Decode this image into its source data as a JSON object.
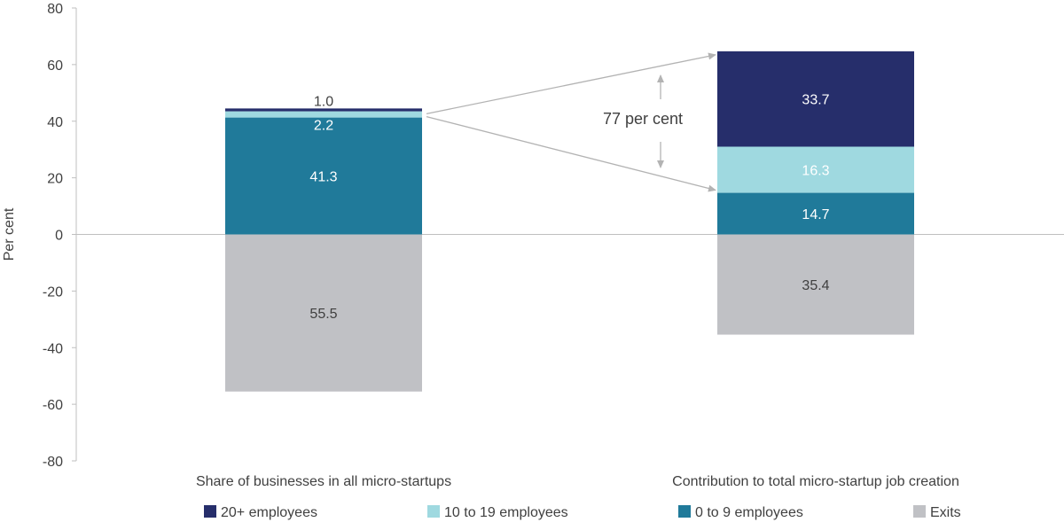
{
  "chart_data": {
    "type": "bar",
    "stacked": true,
    "title": "",
    "ylabel": "Per cent",
    "xlabel": "",
    "ylim": [
      -80,
      80
    ],
    "yticks": [
      80,
      60,
      40,
      20,
      0,
      -20,
      -40,
      -60,
      -80
    ],
    "grid": false,
    "legend_position": "bottom",
    "categories": [
      "Share of businesses in all micro-startups",
      "Contribution to total micro-startup job creation"
    ],
    "series": [
      {
        "name": "20+ employees",
        "color": "#262e6b",
        "label_color": "#ffffff",
        "values": [
          1.0,
          33.7
        ],
        "labels": [
          "1.0",
          "33.7"
        ]
      },
      {
        "name": "10 to 19 employees",
        "color": "#9fd9e0",
        "label_color": "#ffffff",
        "values": [
          2.2,
          16.3
        ],
        "labels": [
          "2.2",
          "16.3"
        ]
      },
      {
        "name": "0 to 9 employees",
        "color": "#207a9a",
        "label_color": "#ffffff",
        "values": [
          41.3,
          14.7
        ],
        "labels": [
          "41.3",
          "14.7"
        ]
      },
      {
        "name": "Exits",
        "color": "#c0c1c5",
        "label_color": "#404040",
        "values": [
          -55.5,
          -35.4
        ],
        "labels": [
          "55.5",
          "35.4"
        ]
      }
    ],
    "annotations": [
      {
        "text": "77 per cent"
      }
    ]
  }
}
